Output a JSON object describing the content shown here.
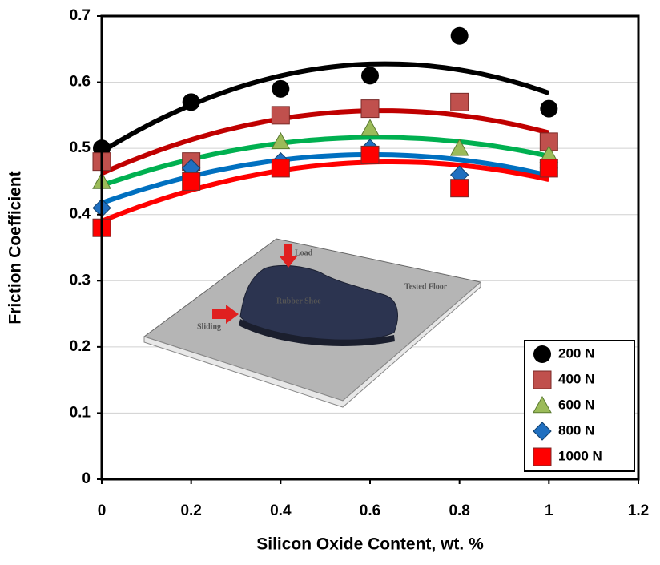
{
  "chart_data": {
    "type": "scatter",
    "x_label": "Silicon Oxide Content, wt. %",
    "y_label": "Friction Coefficient",
    "x": [
      0,
      0.2,
      0.4,
      0.6,
      0.8,
      1
    ],
    "series": [
      {
        "name": "200 N",
        "color": "#000000",
        "line_color": "#000000",
        "marker": "circle",
        "values": [
          0.5,
          0.57,
          0.59,
          0.61,
          0.67,
          0.56
        ]
      },
      {
        "name": "400 N",
        "color": "#c0504d",
        "line_color": "#c00000",
        "marker": "square",
        "values": [
          0.48,
          0.48,
          0.55,
          0.56,
          0.57,
          0.51
        ]
      },
      {
        "name": "600 N",
        "color": "#9bbb59",
        "line_color": "#00b050",
        "marker": "triangle",
        "values": [
          0.45,
          0.47,
          0.51,
          0.53,
          0.5,
          0.49
        ]
      },
      {
        "name": "800 N",
        "color": "#1f6fc0",
        "line_color": "#0070c0",
        "marker": "diamond",
        "values": [
          0.41,
          0.47,
          0.48,
          0.5,
          0.46,
          0.47
        ]
      },
      {
        "name": "1000 N",
        "color": "#ff0000",
        "line_color": "#ff0000",
        "marker": "square",
        "values": [
          0.38,
          0.45,
          0.47,
          0.49,
          0.44,
          0.47
        ]
      }
    ],
    "trendline": "polynomial-2",
    "xlim": [
      0,
      1.2
    ],
    "xticks": [
      0,
      0.2,
      0.4,
      0.6,
      0.8,
      1,
      1.2
    ],
    "ylim": [
      0,
      0.7
    ],
    "yticks": [
      0,
      0.1,
      0.2,
      0.3,
      0.4,
      0.5,
      0.6,
      0.7
    ],
    "grid": true,
    "legend": "lower-right",
    "inset_labels": {
      "load": "Load",
      "shoe": "Rubber Shoe",
      "sliding": "Sliding",
      "floor": "Tested Floor"
    }
  }
}
